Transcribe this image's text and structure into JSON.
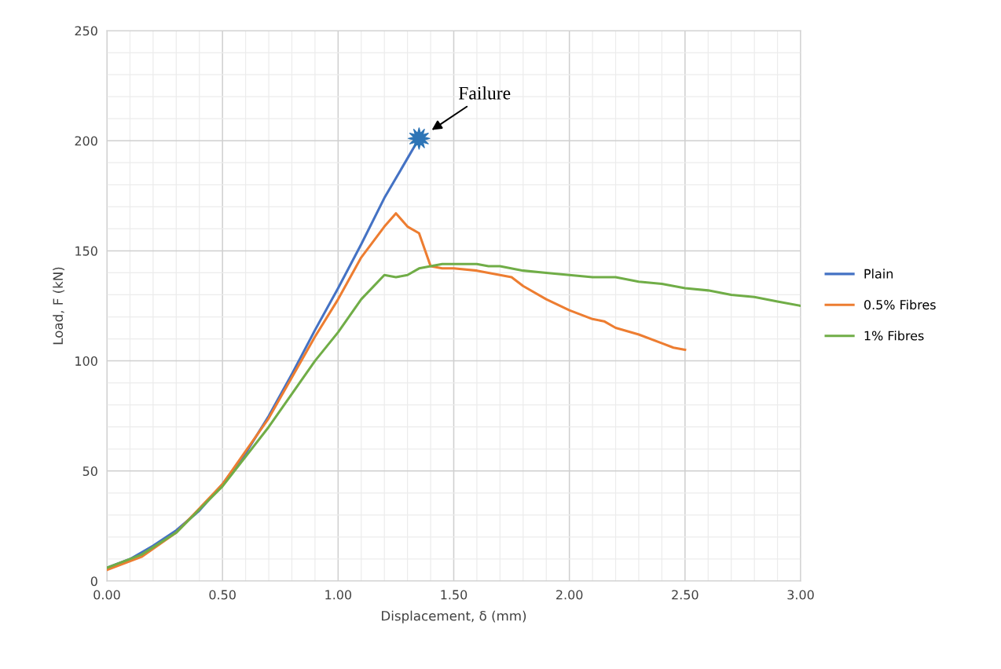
{
  "chart_data": {
    "type": "line",
    "xlabel": "Displacement, δ (mm)",
    "ylabel": "Load, F (kN)",
    "xlim": [
      0,
      3
    ],
    "xticks": [
      {
        "value": 0,
        "label": "0.00"
      },
      {
        "value": 0.5,
        "label": "0.50"
      },
      {
        "value": 1,
        "label": "1.00"
      },
      {
        "value": 1.5,
        "label": "1.50"
      },
      {
        "value": 2,
        "label": "2.00"
      },
      {
        "value": 2.5,
        "label": "2.50"
      },
      {
        "value": 3,
        "label": "3.00"
      }
    ],
    "ylim": [
      0,
      250
    ],
    "yticks": [
      0,
      50,
      100,
      150,
      200,
      250
    ],
    "grid": true,
    "legend": "right",
    "line_style": "solid",
    "annotations": [
      "Failure"
    ],
    "series": [
      {
        "name": "Plain",
        "color": "#4472c4",
        "x": [
          0,
          0.1,
          0.2,
          0.3,
          0.4,
          0.5,
          0.6,
          0.7,
          0.8,
          0.9,
          1.0,
          1.1,
          1.2,
          1.3,
          1.35
        ],
        "values": [
          6,
          10,
          16,
          23,
          32,
          44,
          58,
          75,
          94,
          114,
          133,
          153,
          174,
          192,
          201
        ]
      },
      {
        "name": "0.5% Fibres",
        "color": "#ed7d31",
        "x": [
          0,
          0.15,
          0.3,
          0.5,
          0.7,
          0.9,
          1.0,
          1.1,
          1.2,
          1.25,
          1.3,
          1.35,
          1.4,
          1.45,
          1.5,
          1.6,
          1.7,
          1.75,
          1.8,
          1.9,
          2.0,
          2.1,
          2.15,
          2.2,
          2.3,
          2.4,
          2.45,
          2.5
        ],
        "values": [
          5,
          11,
          22,
          44,
          74,
          111,
          128,
          147,
          161,
          167,
          161,
          158,
          143,
          142,
          142,
          141,
          139,
          138,
          134,
          128,
          123,
          119,
          118,
          115,
          112,
          108,
          106,
          105
        ]
      },
      {
        "name": "1% Fibres",
        "color": "#70ad47",
        "x": [
          0,
          0.15,
          0.3,
          0.5,
          0.7,
          0.9,
          1.0,
          1.1,
          1.2,
          1.25,
          1.3,
          1.35,
          1.45,
          1.6,
          1.65,
          1.7,
          1.8,
          1.9,
          2.0,
          2.1,
          2.2,
          2.3,
          2.4,
          2.5,
          2.6,
          2.7,
          2.8,
          2.9,
          3.0
        ],
        "values": [
          6,
          12,
          22,
          43,
          70,
          100,
          113,
          128,
          139,
          138,
          139,
          142,
          144,
          144,
          143,
          143,
          141,
          140,
          139,
          138,
          138,
          136,
          135,
          133,
          132,
          130,
          129,
          127,
          125
        ]
      },
      {
        "type": "scatter",
        "marker": "star",
        "color": "#2e75b6",
        "x": [
          1.35
        ],
        "values": [
          201
        ]
      }
    ]
  }
}
